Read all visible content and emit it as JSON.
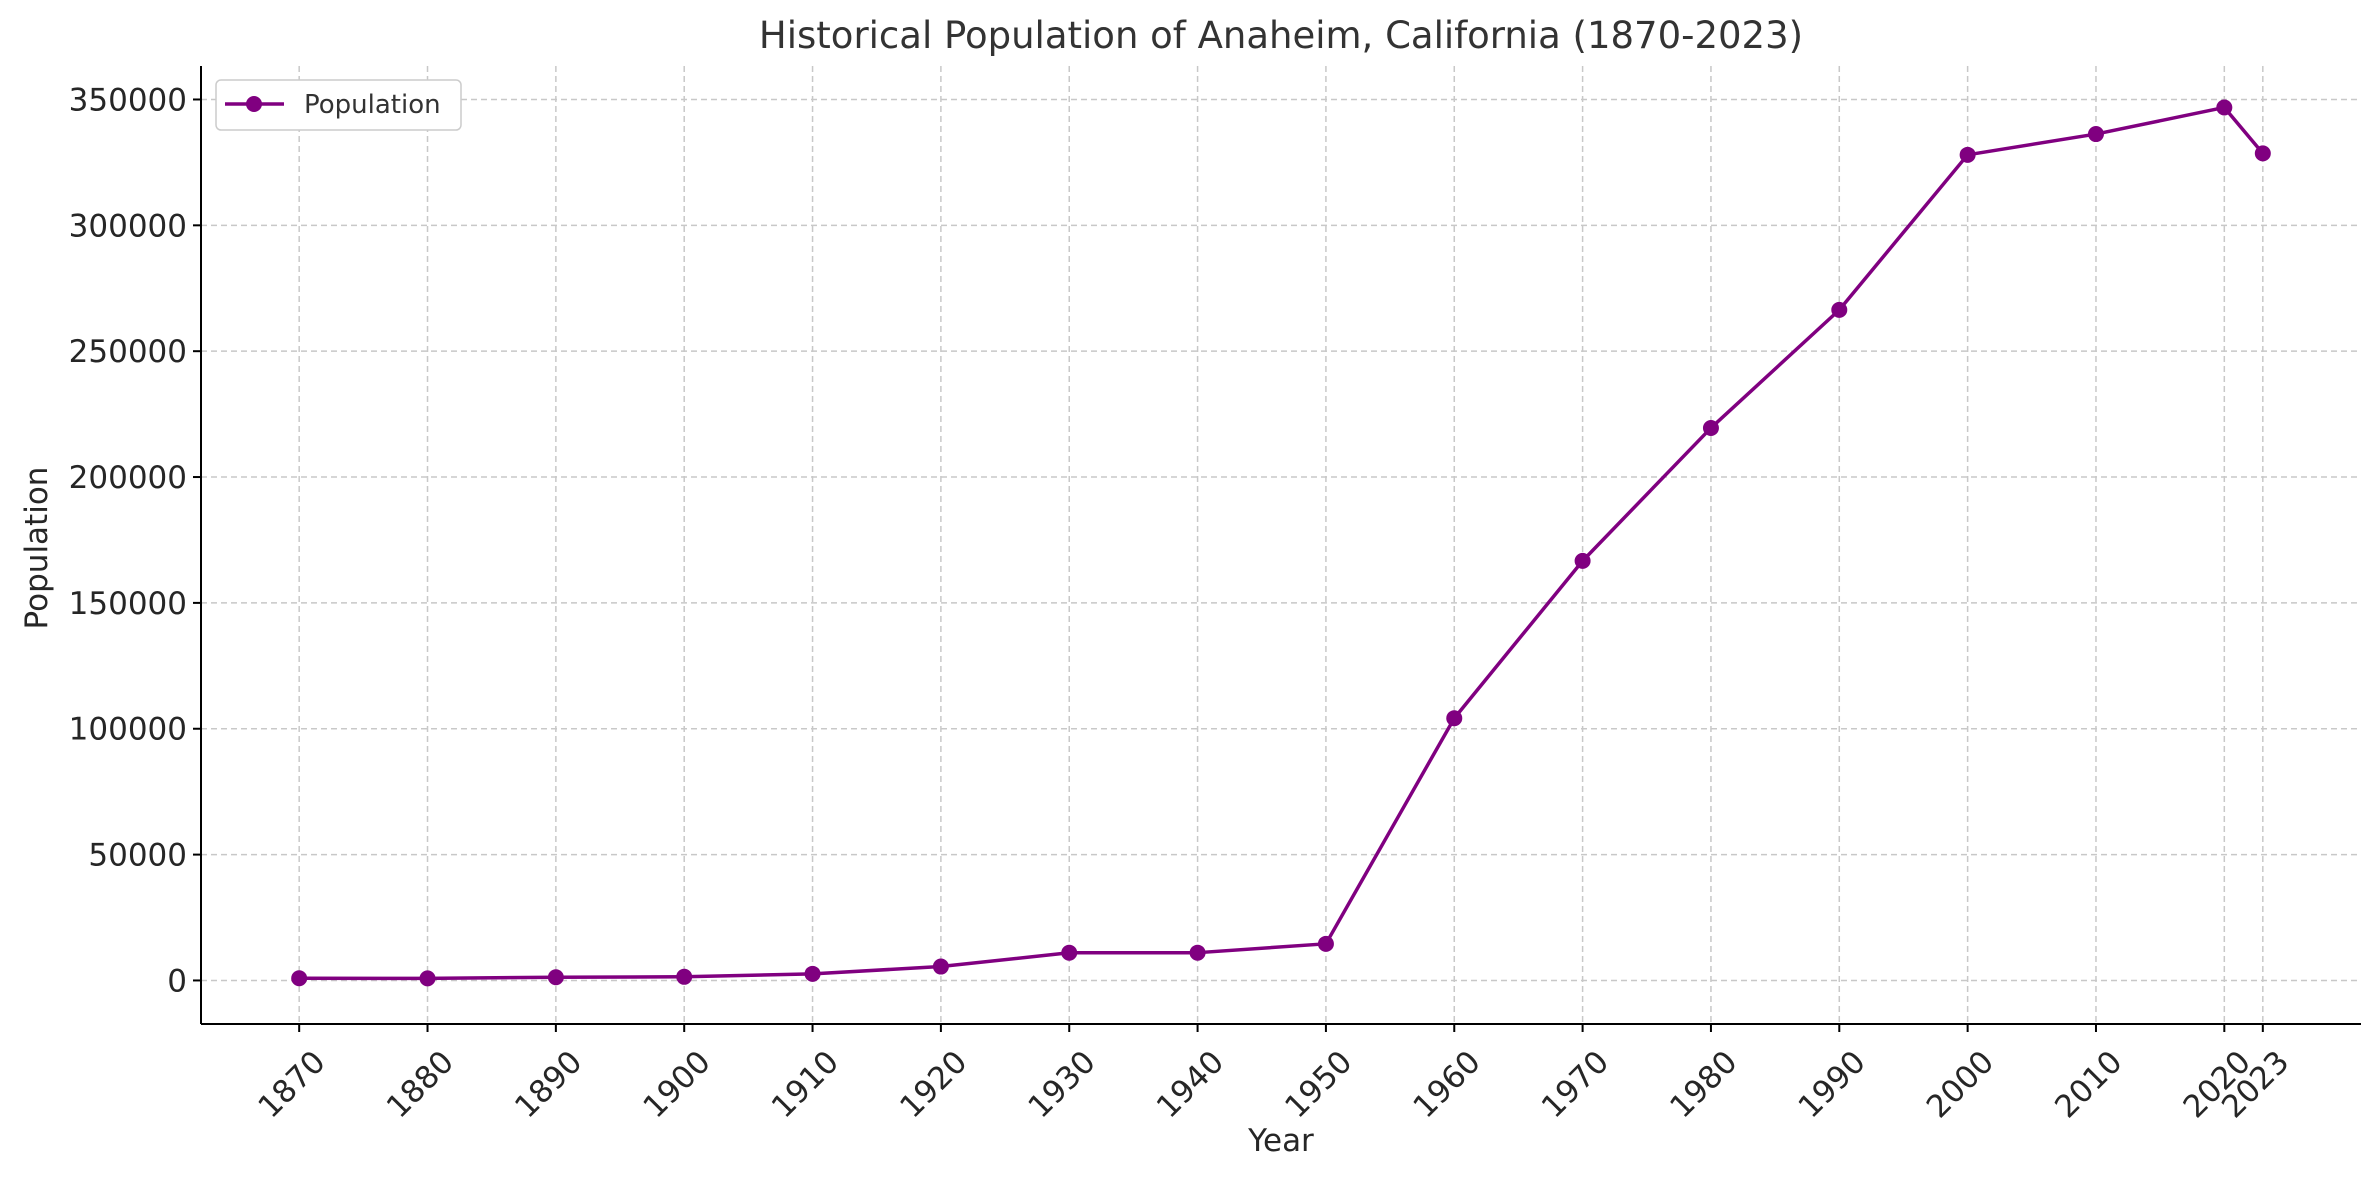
{
  "chart_data": {
    "type": "line",
    "title": "Historical Population of Anaheim, California (1870-2023)",
    "xlabel": "Year",
    "ylabel": "Population",
    "x": [
      1870,
      1880,
      1890,
      1900,
      1910,
      1920,
      1930,
      1940,
      1950,
      1960,
      1970,
      1980,
      1990,
      2000,
      2010,
      2020,
      2023
    ],
    "x_tick_labels": [
      "1870",
      "1880",
      "1890",
      "1900",
      "1910",
      "1920",
      "1930",
      "1940",
      "1950",
      "1960",
      "1970",
      "1980",
      "1990",
      "2000",
      "2010",
      "2020",
      "2023"
    ],
    "series": [
      {
        "name": "Population",
        "color": "#800080",
        "marker": "circle",
        "values": [
          881,
          833,
          1273,
          1456,
          2628,
          5526,
          10995,
          11031,
          14556,
          104184,
          166701,
          219494,
          266406,
          328014,
          336265,
          346824,
          328580
        ]
      }
    ],
    "xlim": [
      1862.35,
      2030.65
    ],
    "ylim": [
      -17300,
      363300
    ],
    "y_ticks": [
      0,
      50000,
      100000,
      150000,
      200000,
      250000,
      300000,
      350000
    ],
    "y_tick_labels": [
      "0",
      "50000",
      "100000",
      "150000",
      "200000",
      "250000",
      "300000",
      "350000"
    ],
    "grid": true,
    "legend_position": "top-left",
    "colors": {
      "line": "#800080",
      "grid": "#c8c8c8",
      "axis": "#000000",
      "text": "#262626"
    }
  }
}
